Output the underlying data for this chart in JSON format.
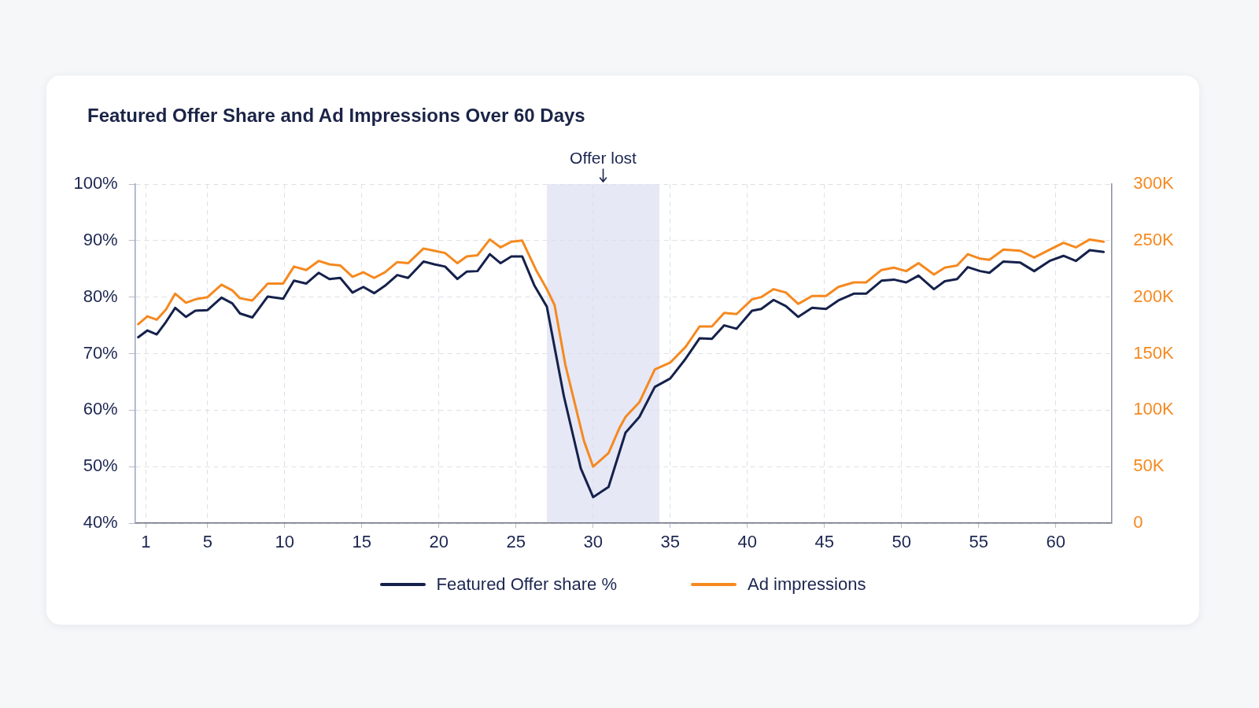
{
  "chart_data": {
    "type": "line",
    "title": "Featured Offer Share and Ad Impressions Over 60 Days",
    "xlim": [
      0.3,
      63.6
    ],
    "xticks": [
      1,
      5,
      10,
      15,
      20,
      25,
      30,
      35,
      40,
      45,
      50,
      55,
      60
    ],
    "ylim": [
      40,
      100
    ],
    "yticks": [
      {
        "value": 40,
        "label": "40%"
      },
      {
        "value": 50,
        "label": "50%"
      },
      {
        "value": 60,
        "label": "60%"
      },
      {
        "value": 70,
        "label": "70%"
      },
      {
        "value": 80,
        "label": "80%"
      },
      {
        "value": 90,
        "label": "90%"
      },
      {
        "value": 100,
        "label": "100%"
      }
    ],
    "y2lim": [
      0,
      300000
    ],
    "y2ticks": [
      0,
      {
        "value": 50000,
        "label": "50K"
      },
      {
        "value": 100000,
        "label": "100K"
      },
      {
        "value": 150000,
        "label": "150K"
      },
      {
        "value": 200000,
        "label": "200K"
      },
      {
        "value": 250000,
        "label": "250K"
      },
      {
        "value": 300000,
        "label": "300K"
      }
    ],
    "series": [
      {
        "name": "Featured Offer share %",
        "color": "#15214b",
        "x": [
          0.5,
          1.1,
          1.7,
          2.3,
          2.9,
          3.6,
          4.2,
          5.0,
          5.9,
          6.6,
          7.1,
          7.9,
          8.9,
          9.9,
          10.6,
          11.4,
          12.2,
          12.9,
          13.6,
          14.4,
          15.1,
          15.8,
          16.5,
          17.3,
          18.0,
          19.0,
          19.7,
          20.4,
          21.2,
          21.8,
          22.5,
          23.3,
          24.0,
          24.7,
          25.4,
          26.2,
          27.0,
          28.1,
          29.2,
          30.0,
          31.0,
          32.1,
          33.0,
          34.0,
          35.0,
          36.0,
          36.9,
          37.7,
          38.5,
          39.3,
          40.3,
          40.9,
          41.7,
          42.5,
          43.3,
          44.2,
          45.1,
          45.9,
          46.9,
          47.7,
          48.7,
          49.5,
          50.3,
          51.1,
          52.1,
          52.8,
          53.6,
          54.3,
          55.1,
          55.7,
          56.6,
          57.7,
          58.6,
          59.6,
          60.5,
          61.3,
          62.2,
          63.1
        ],
        "values": [
          72.9,
          74.1,
          73.4,
          75.6,
          78.1,
          76.5,
          77.6,
          77.7,
          79.9,
          78.9,
          77.1,
          76.4,
          80.1,
          79.7,
          82.9,
          82.4,
          84.3,
          83.2,
          83.4,
          80.8,
          81.8,
          80.7,
          82.0,
          83.9,
          83.4,
          86.3,
          85.8,
          85.4,
          83.2,
          84.5,
          84.6,
          87.6,
          86.0,
          87.2,
          87.2,
          82.0,
          78.3,
          62.5,
          49.7,
          44.6,
          46.4,
          56.0,
          58.8,
          64.1,
          65.6,
          69.1,
          72.7,
          72.6,
          75.0,
          74.4,
          77.6,
          77.9,
          79.5,
          78.4,
          76.5,
          78.1,
          77.9,
          79.4,
          80.6,
          80.6,
          82.9,
          83.1,
          82.6,
          83.8,
          81.4,
          82.8,
          83.2,
          85.3,
          84.6,
          84.3,
          86.3,
          86.1,
          84.6,
          86.4,
          87.3,
          86.4,
          88.3,
          88.0
        ]
      },
      {
        "name": "Ad impressions",
        "color": "#f5891f",
        "axis": "y2",
        "x": [
          0.5,
          1.1,
          1.7,
          2.3,
          2.9,
          3.6,
          4.2,
          5.0,
          5.9,
          6.6,
          7.1,
          7.9,
          8.9,
          9.9,
          10.6,
          11.4,
          12.2,
          12.9,
          13.6,
          14.4,
          15.1,
          15.8,
          16.5,
          17.3,
          18.0,
          19.0,
          19.7,
          20.4,
          21.2,
          21.8,
          22.5,
          23.3,
          24.0,
          24.7,
          25.4,
          26.3,
          27.0,
          27.5,
          28.2,
          29.4,
          30.0,
          31.0,
          31.7,
          32.1,
          33.0,
          34.0,
          35.0,
          36.0,
          36.9,
          37.7,
          38.5,
          39.3,
          40.3,
          40.9,
          41.7,
          42.5,
          43.3,
          44.2,
          45.1,
          45.9,
          46.9,
          47.7,
          48.7,
          49.5,
          50.3,
          51.1,
          52.1,
          52.8,
          53.6,
          54.3,
          55.1,
          55.7,
          56.6,
          57.7,
          58.6,
          59.6,
          60.5,
          61.3,
          62.2,
          63.1
        ],
        "values": [
          176000,
          183000,
          180000,
          189000,
          203000,
          195000,
          198000,
          200000,
          211000,
          206000,
          199000,
          197000,
          212000,
          212000,
          227000,
          224000,
          232000,
          229000,
          228000,
          218000,
          222000,
          217000,
          222000,
          231000,
          230000,
          243000,
          241000,
          239000,
          230000,
          236000,
          237000,
          251000,
          244000,
          249000,
          250000,
          224000,
          207000,
          193000,
          140000,
          73000,
          50000,
          62000,
          84000,
          94000,
          107000,
          136000,
          142000,
          156000,
          174000,
          174000,
          186000,
          185000,
          198000,
          200000,
          207000,
          204000,
          194000,
          201000,
          201000,
          209000,
          213000,
          213000,
          224000,
          226000,
          223000,
          230000,
          220000,
          226000,
          228000,
          238000,
          234000,
          233000,
          242000,
          241000,
          235000,
          242000,
          248000,
          244000,
          251000,
          249000
        ]
      }
    ],
    "bands": [
      {
        "axis": "x",
        "from": 27,
        "to": 34.3,
        "label": "Offer lost",
        "color": "#e6e8f6"
      }
    ],
    "grid": true,
    "legend": "bottom"
  }
}
